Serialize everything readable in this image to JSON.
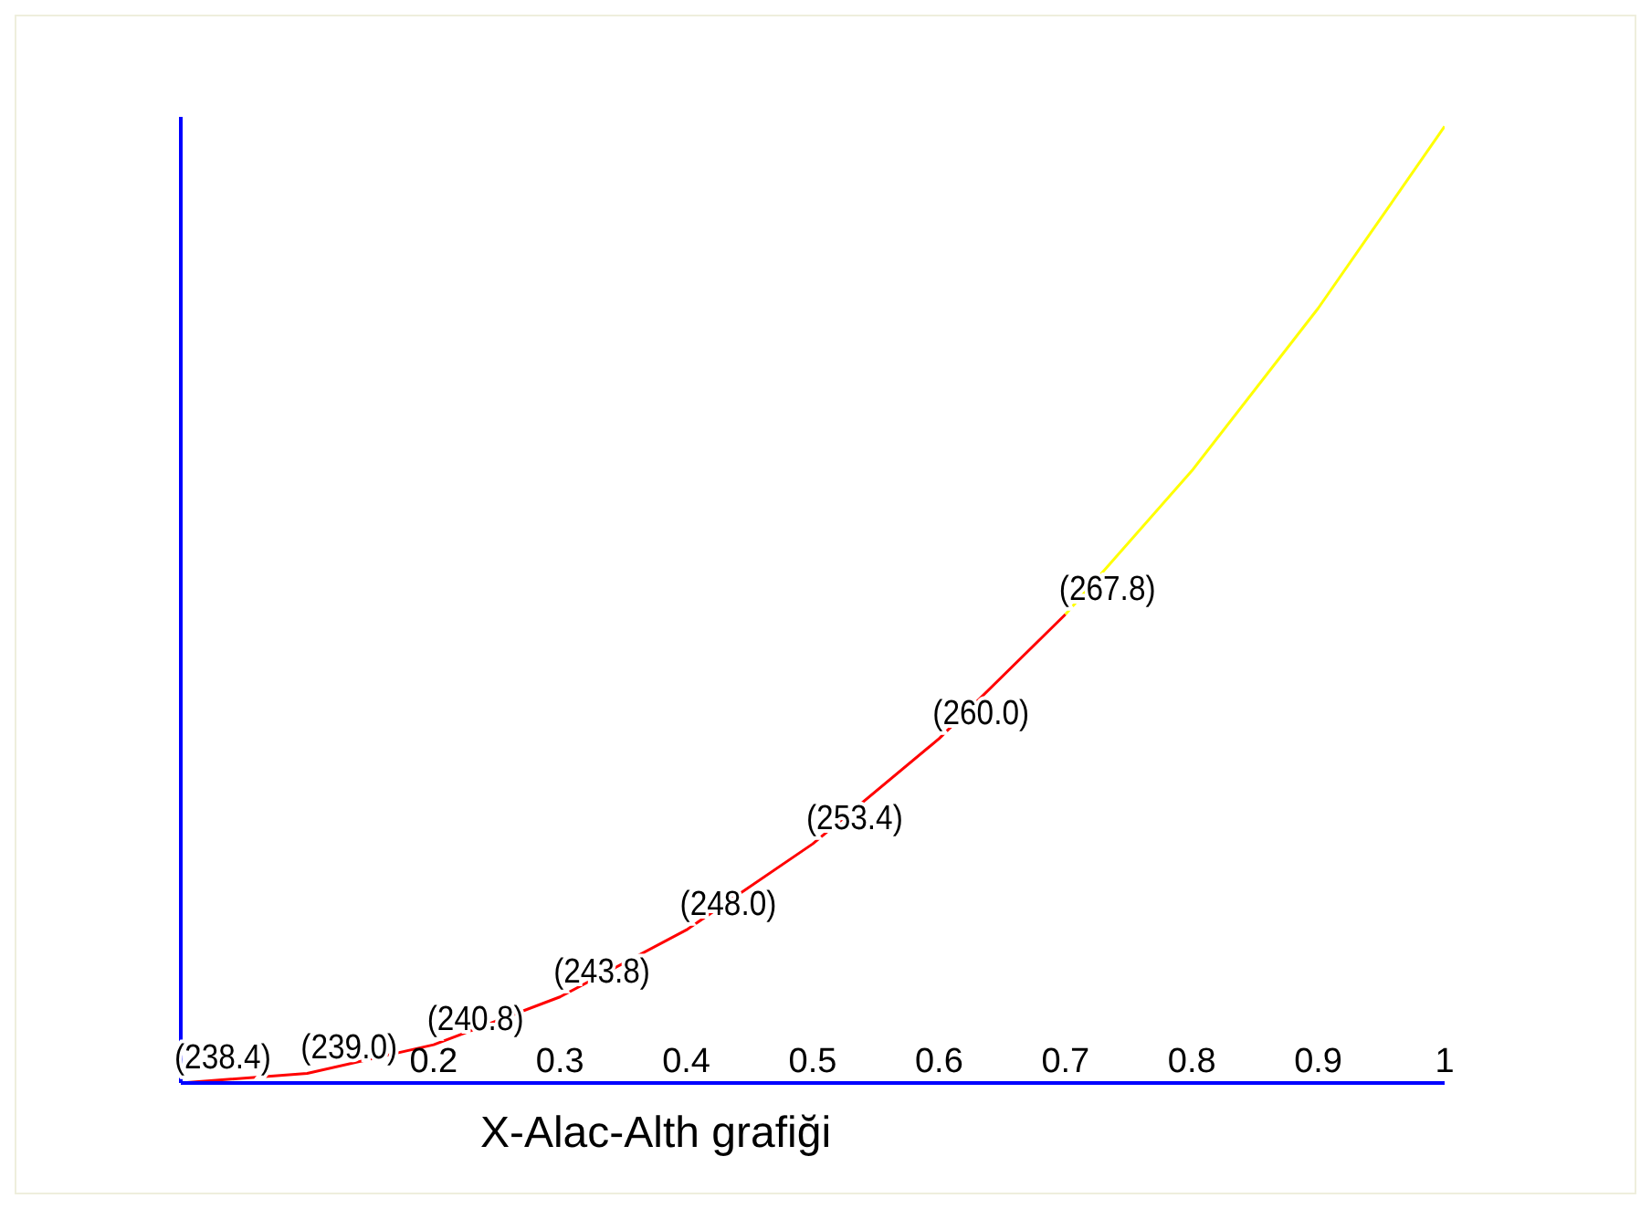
{
  "chart_data": {
    "type": "line",
    "xlabel": "X-Alac-Alth grafiği",
    "xlim": [
      0,
      1
    ],
    "xticks": [
      0.2,
      0.3,
      0.4,
      0.5,
      0.6,
      0.7,
      0.8,
      0.9,
      1
    ],
    "ylim": [
      238.4,
      299
    ],
    "tick_labels": "x",
    "grid": false,
    "marker": "none",
    "line_style": "solid",
    "series": [
      {
        "color": "#ff0000",
        "x": [
          0,
          0.1,
          0.2,
          0.3,
          0.4,
          0.5,
          0.6,
          0.7
        ],
        "values": [
          238.4,
          239.0,
          240.8,
          243.8,
          248.0,
          253.4,
          260.0,
          267.8
        ],
        "value_labels": [
          "(238.4)",
          "(239.0)",
          "(240.8)",
          "(243.8)",
          "(248.0)",
          "(253.4)",
          "(260.0)",
          "(267.8)"
        ]
      },
      {
        "color": "#ffff00",
        "x": [
          0.7,
          0.8,
          0.9,
          1
        ],
        "values": [
          267.8,
          276.8,
          287.0,
          298.4
        ]
      }
    ]
  }
}
